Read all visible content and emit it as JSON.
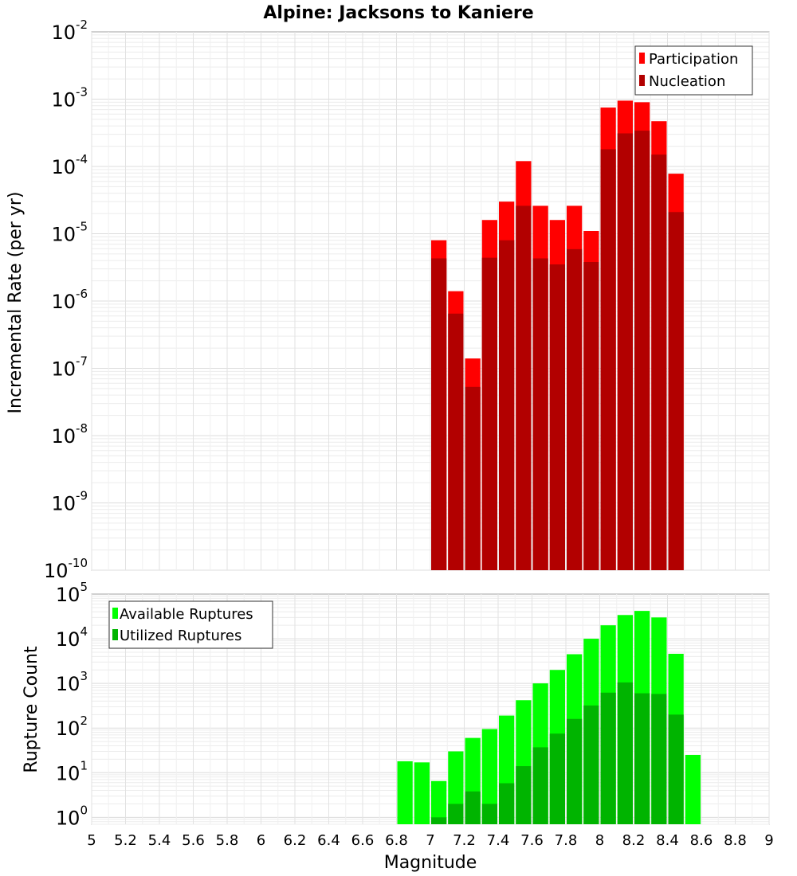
{
  "title": "Alpine: Jacksons to Kaniere",
  "xlabel": "Magnitude",
  "chart_data": [
    {
      "type": "bar",
      "name": "rate-panel",
      "ylabel": "Incremental Rate (per yr)",
      "yscale": "log",
      "ylim": [
        1e-10,
        0.01
      ],
      "xlim": [
        5,
        9
      ],
      "bin_width": 0.1,
      "grid": true,
      "legend_position": "top-right",
      "ytick_bases": [
        "10",
        "10",
        "10",
        "10",
        "10",
        "10",
        "10",
        "10",
        "10"
      ],
      "ytick_exponents": [
        "-10",
        "-9",
        "-8",
        "-7",
        "-6",
        "-5",
        "-4",
        "-3",
        "-2"
      ],
      "x": [
        7.05,
        7.15,
        7.25,
        7.35,
        7.45,
        7.55,
        7.65,
        7.75,
        7.85,
        7.95,
        8.05,
        8.15,
        8.25,
        8.35,
        8.45
      ],
      "series": [
        {
          "name": "Participation",
          "color": "#ff0000",
          "values": [
            8e-06,
            1.4e-06,
            1.4e-07,
            1.6e-05,
            3e-05,
            0.00012,
            2.6e-05,
            1.6e-05,
            2.6e-05,
            1.1e-05,
            0.00075,
            0.00095,
            0.0009,
            0.00047,
            7.8e-05
          ]
        },
        {
          "name": "Nucleation",
          "color": "#b20000",
          "values": [
            4.3e-06,
            6.5e-07,
            5.3e-08,
            4.4e-06,
            8e-06,
            2.6e-05,
            4.3e-06,
            3.5e-06,
            5.9e-06,
            3.8e-06,
            0.00018,
            0.00031,
            0.00034,
            0.00015,
            2.1e-05
          ]
        }
      ]
    },
    {
      "type": "bar",
      "name": "count-panel",
      "ylabel": "Rupture Count",
      "yscale": "log",
      "ylim": [
        0.7,
        100000
      ],
      "xlim": [
        5,
        9
      ],
      "bin_width": 0.1,
      "grid": true,
      "legend_position": "top-left",
      "ytick_bases": [
        "10",
        "10",
        "10",
        "10",
        "10",
        "10"
      ],
      "ytick_exponents": [
        "0",
        "1",
        "2",
        "3",
        "4",
        "5"
      ],
      "x": [
        6.85,
        6.95,
        7.05,
        7.15,
        7.25,
        7.35,
        7.45,
        7.55,
        7.65,
        7.75,
        7.85,
        7.95,
        8.05,
        8.15,
        8.25,
        8.35,
        8.45,
        8.55
      ],
      "series": [
        {
          "name": "Available Ruptures",
          "color": "#00ff00",
          "values": [
            18,
            17,
            6.5,
            30,
            60,
            95,
            190,
            420,
            1000,
            2000,
            4500,
            10000,
            20000,
            34000,
            42000,
            30000,
            4600,
            25
          ]
        },
        {
          "name": "Utilized Ruptures",
          "color": "#00b400",
          "values": [
            0,
            0,
            1,
            2,
            3.8,
            2,
            5.8,
            14,
            37,
            75,
            160,
            320,
            620,
            1050,
            600,
            580,
            200,
            0
          ]
        }
      ]
    }
  ],
  "xticks": [
    "5",
    "5.2",
    "5.4",
    "5.6",
    "5.8",
    "6",
    "6.2",
    "6.4",
    "6.6",
    "6.8",
    "7",
    "7.2",
    "7.4",
    "7.6",
    "7.8",
    "8",
    "8.2",
    "8.4",
    "8.6",
    "8.8",
    "9"
  ]
}
